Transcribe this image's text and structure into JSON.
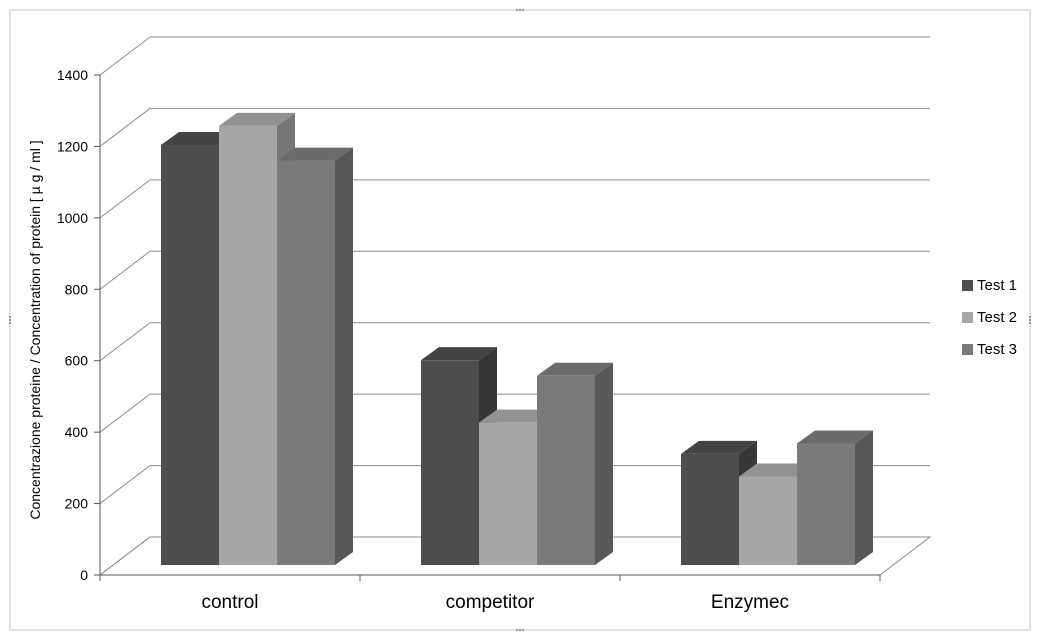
{
  "chart_data": {
    "type": "bar",
    "title": "",
    "xlabel": "",
    "ylabel": "Concentrazione proteine / Concentration of protein [ µ g / ml ]",
    "categories": [
      "control",
      "competitor",
      "Enzymec"
    ],
    "series": [
      {
        "name": "Test 1",
        "values": [
          1210,
          590,
          320
        ],
        "color": "#4d4d4d"
      },
      {
        "name": "Test 2",
        "values": [
          1265,
          410,
          255
        ],
        "color": "#a6a6a6"
      },
      {
        "name": "Test 3",
        "values": [
          1165,
          545,
          350
        ],
        "color": "#7a7a7a"
      }
    ],
    "ylim": [
      0,
      1400
    ],
    "yticks": [
      "0",
      "200",
      "400",
      "600",
      "800",
      "1000",
      "1200",
      "1400"
    ],
    "grid": true,
    "legend_position": "right"
  }
}
